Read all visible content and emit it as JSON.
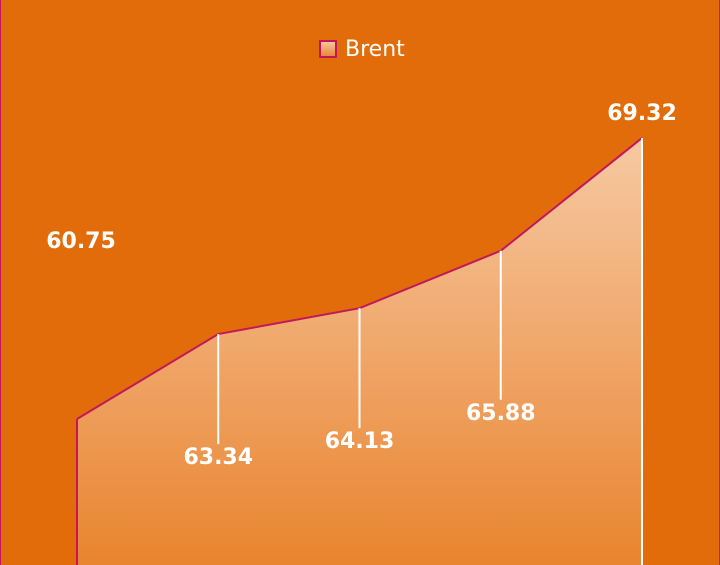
{
  "chart_data": {
    "type": "area",
    "categories": [
      null,
      null,
      null,
      null,
      null
    ],
    "series": [
      {
        "name": "Brent",
        "color": "#c2185b",
        "values": [
          60.75,
          63.34,
          64.13,
          65.88,
          69.32
        ]
      }
    ],
    "legend": "top"
  }
}
